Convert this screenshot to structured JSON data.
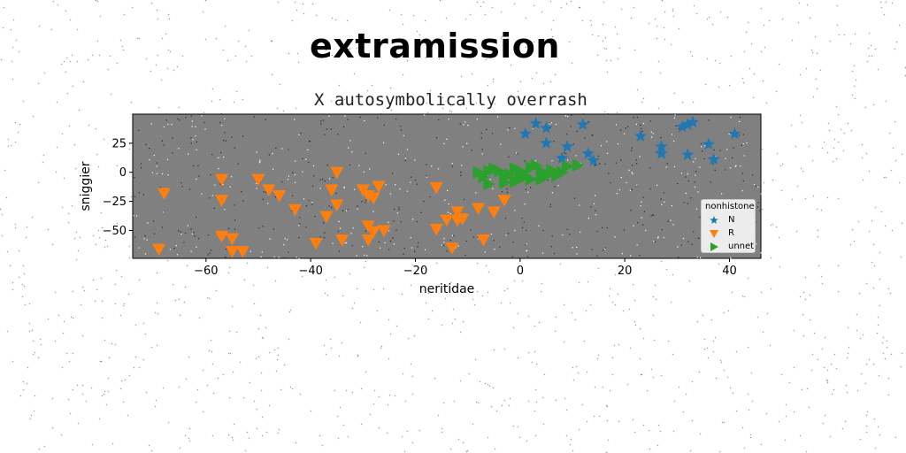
{
  "header": {
    "title": "extramission"
  },
  "chart_data": {
    "type": "scatter",
    "title": "X autosymbolically overrash",
    "xlabel": "neritidae",
    "ylabel": "sniggier",
    "xlim": [
      -74,
      46
    ],
    "ylim": [
      -74,
      50
    ],
    "xticks": [
      -60,
      -40,
      -20,
      0,
      20,
      40
    ],
    "yticks": [
      -50,
      -25,
      0,
      25
    ],
    "grid": false,
    "background": "#808080",
    "legend": {
      "title": "nonhistone",
      "position": "lower right"
    },
    "series": [
      {
        "name": "N",
        "marker": "star",
        "color": "#1f77b4",
        "points": [
          [
            3,
            42
          ],
          [
            5,
            38
          ],
          [
            1,
            33
          ],
          [
            12,
            41
          ],
          [
            5,
            25
          ],
          [
            9,
            22
          ],
          [
            8,
            12
          ],
          [
            13,
            16
          ],
          [
            14,
            10
          ],
          [
            23,
            31
          ],
          [
            27,
            22
          ],
          [
            27,
            16
          ],
          [
            32,
            15
          ],
          [
            31,
            39
          ],
          [
            32,
            41
          ],
          [
            33,
            43
          ],
          [
            36,
            24
          ],
          [
            37,
            11
          ],
          [
            41,
            33
          ]
        ]
      },
      {
        "name": "R",
        "marker": "triangle_down",
        "color": "#ff7f0e",
        "points": [
          [
            -68,
            -18
          ],
          [
            -69,
            -66
          ],
          [
            -57,
            -6
          ],
          [
            -57,
            -24
          ],
          [
            -57,
            -55
          ],
          [
            -55,
            -57
          ],
          [
            -55,
            -68
          ],
          [
            -53,
            -68
          ],
          [
            -50,
            -6
          ],
          [
            -48,
            -15
          ],
          [
            -46,
            -20
          ],
          [
            -43,
            -32
          ],
          [
            -39,
            -61
          ],
          [
            -37,
            -38
          ],
          [
            -36,
            -15
          ],
          [
            -35,
            -28
          ],
          [
            -34,
            -58
          ],
          [
            -35,
            0
          ],
          [
            -30,
            -15
          ],
          [
            -29,
            -20
          ],
          [
            -29,
            -46
          ],
          [
            -29,
            -58
          ],
          [
            -28,
            -51
          ],
          [
            -28,
            -22
          ],
          [
            -27,
            -12
          ],
          [
            -26,
            -50
          ],
          [
            -16,
            -13
          ],
          [
            -16,
            -49
          ],
          [
            -14,
            -41
          ],
          [
            -13,
            -65
          ],
          [
            -12,
            -34
          ],
          [
            -12,
            -41
          ],
          [
            -11,
            -40
          ],
          [
            -8,
            -31
          ],
          [
            -7,
            -58
          ],
          [
            -5,
            -34
          ],
          [
            -3,
            -24
          ]
        ]
      },
      {
        "name": "unnet",
        "marker": "triangle_right",
        "color": "#2ca02c",
        "points": [
          [
            -8,
            0
          ],
          [
            -7,
            -4
          ],
          [
            -6,
            -10
          ],
          [
            -5,
            3
          ],
          [
            -4,
            1
          ],
          [
            -3,
            -4
          ],
          [
            -2,
            -2
          ],
          [
            -1,
            3
          ],
          [
            0,
            -6
          ],
          [
            1,
            -3
          ],
          [
            2,
            4
          ],
          [
            2,
            -6
          ],
          [
            3,
            6
          ],
          [
            4,
            1
          ],
          [
            5,
            -3
          ],
          [
            6,
            2
          ],
          [
            7,
            -3
          ],
          [
            8,
            0
          ],
          [
            9,
            5
          ],
          [
            11,
            6
          ],
          [
            4,
            -6
          ],
          [
            -1,
            -8
          ],
          [
            -3,
            -9
          ],
          [
            -6,
            1
          ],
          [
            0,
            1
          ]
        ]
      }
    ]
  }
}
